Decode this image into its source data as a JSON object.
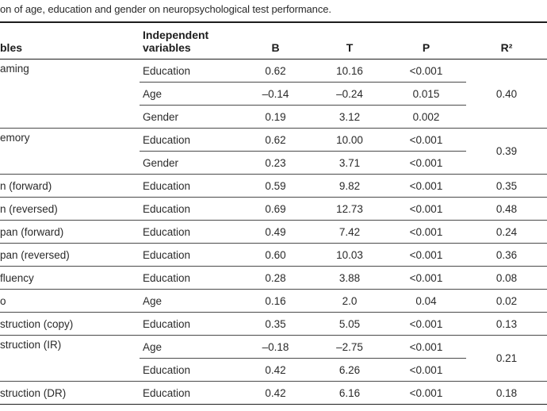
{
  "caption": "on of age, education and gender on neuropsychological test performance.",
  "headers": {
    "variables": "bles",
    "independent_line1": "Independent",
    "independent_line2": "variables",
    "b": "B",
    "t": "T",
    "p": "P",
    "r2": "R²"
  },
  "rows": [
    {
      "var": "aming",
      "ind": "Education",
      "b": "0.62",
      "t": "10.16",
      "p": "<0.001"
    },
    {
      "var": "",
      "ind": "Age",
      "b": "–0.14",
      "t": "–0.24",
      "p": "0.015"
    },
    {
      "var": "",
      "ind": "Gender",
      "b": "0.19",
      "t": "3.12",
      "p": "0.002"
    },
    {
      "var": "emory",
      "ind": "Education",
      "b": "0.62",
      "t": "10.00",
      "p": "<0.001"
    },
    {
      "var": "",
      "ind": "Gender",
      "b": "0.23",
      "t": "3.71",
      "p": "<0.001"
    },
    {
      "var": "n (forward)",
      "ind": "Education",
      "b": "0.59",
      "t": "9.82",
      "p": "<0.001",
      "r2": "0.35"
    },
    {
      "var": "n (reversed)",
      "ind": "Education",
      "b": "0.69",
      "t": "12.73",
      "p": "<0.001",
      "r2": "0.48"
    },
    {
      "var": "pan (forward)",
      "ind": "Education",
      "b": "0.49",
      "t": "7.42",
      "p": "<0.001",
      "r2": "0.24"
    },
    {
      "var": "pan (reversed)",
      "ind": "Education",
      "b": "0.60",
      "t": "10.03",
      "p": "<0.001",
      "r2": "0.36"
    },
    {
      "var": "fluency",
      "ind": "Education",
      "b": "0.28",
      "t": "3.88",
      "p": "<0.001",
      "r2": "0.08"
    },
    {
      "var": "o",
      "ind": "Age",
      "b": "0.16",
      "t": "2.0",
      "p": "0.04",
      "r2": "0.02"
    },
    {
      "var": "struction (copy)",
      "ind": "Education",
      "b": "0.35",
      "t": "5.05",
      "p": "<0.001",
      "r2": "0.13"
    },
    {
      "var": "struction (IR)",
      "ind": "Age",
      "b": "–0.18",
      "t": "–2.75",
      "p": "<0.001"
    },
    {
      "var": "",
      "ind": "Education",
      "b": "0.42",
      "t": "6.26",
      "p": "<0.001"
    },
    {
      "var": "struction (DR)",
      "ind": "Education",
      "b": "0.42",
      "t": "6.16",
      "p": "<0.001",
      "r2": "0.18"
    }
  ],
  "merged_r2": {
    "naming": "0.40",
    "memory": "0.39",
    "construction_ir": "0.21"
  }
}
